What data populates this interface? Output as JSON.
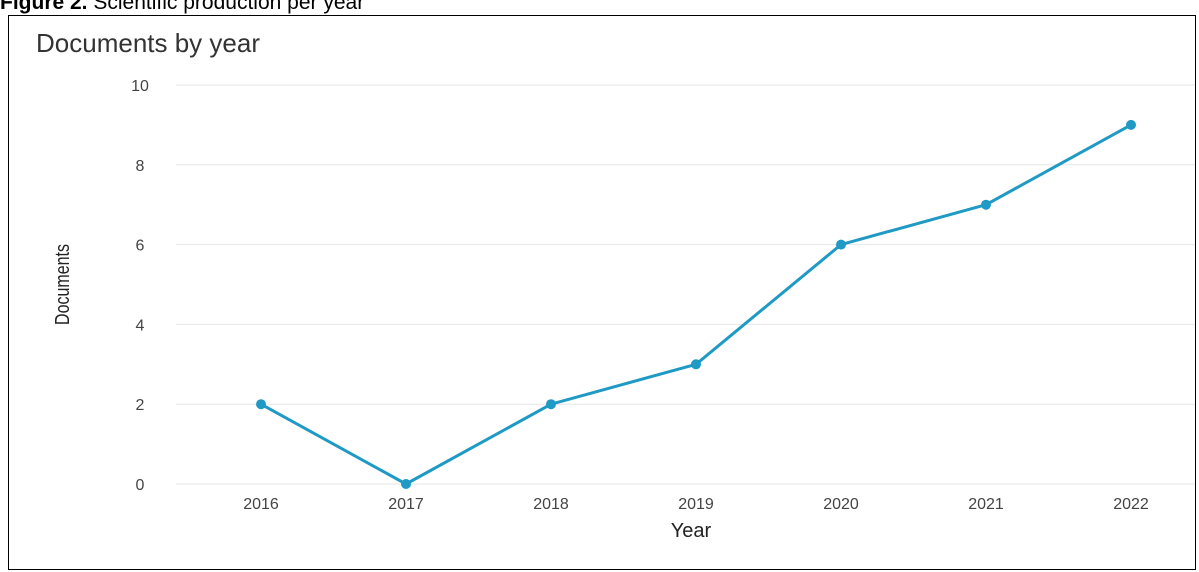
{
  "figure": {
    "label": "Figure 2.",
    "caption": "Scientific production per year"
  },
  "colors": {
    "line": "#1f9ac4",
    "grid": "#e6e6e6"
  },
  "chart_data": {
    "type": "line",
    "title": "Documents by year",
    "xlabel": "Year",
    "ylabel": "Documents",
    "categories": [
      "2016",
      "2017",
      "2018",
      "2019",
      "2020",
      "2021",
      "2022"
    ],
    "values": [
      2,
      0,
      2,
      3,
      6,
      7,
      9
    ],
    "ylim": [
      0,
      10
    ],
    "yticks": [
      0,
      2,
      4,
      6,
      8,
      10
    ],
    "grid": true,
    "legend": "none"
  }
}
